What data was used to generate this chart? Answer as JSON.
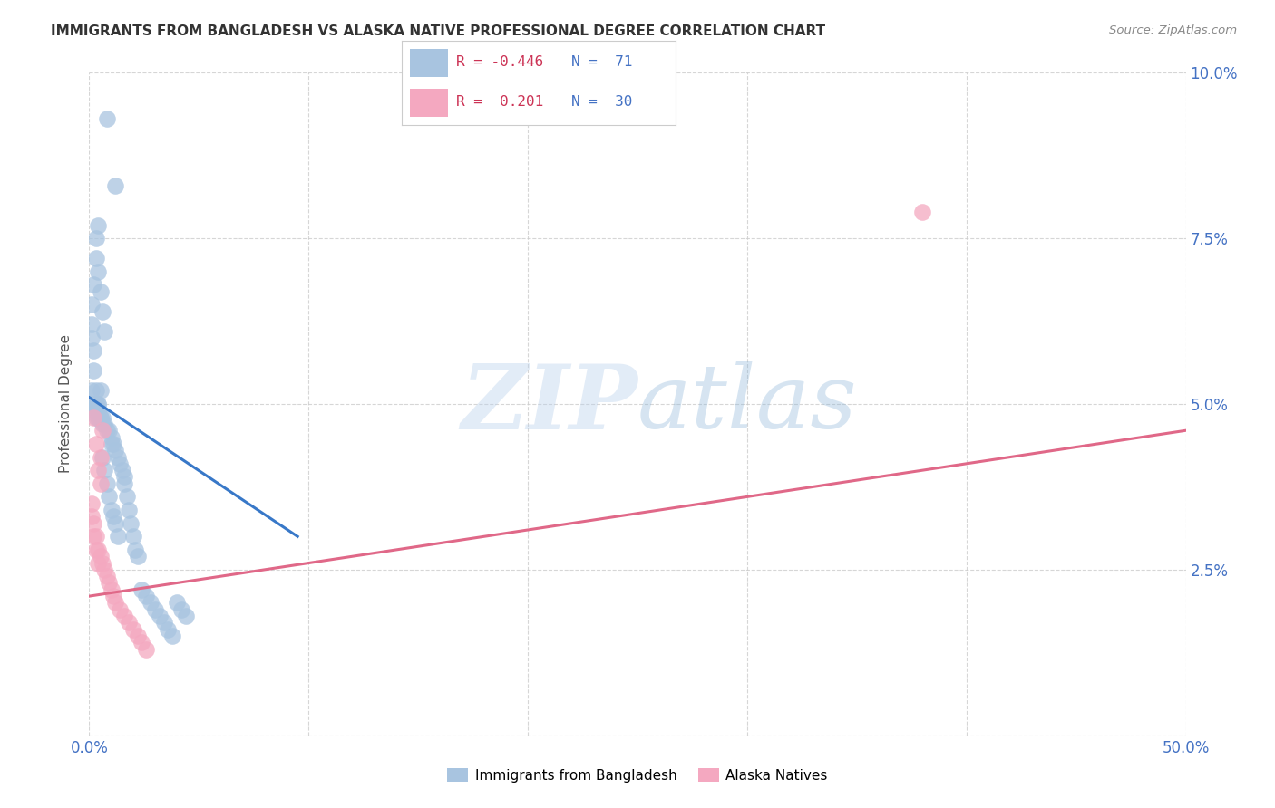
{
  "title": "IMMIGRANTS FROM BANGLADESH VS ALASKA NATIVE PROFESSIONAL DEGREE CORRELATION CHART",
  "source": "Source: ZipAtlas.com",
  "ylabel": "Professional Degree",
  "xlim": [
    0.0,
    0.5
  ],
  "ylim": [
    0.0,
    0.1
  ],
  "xticks": [
    0.0,
    0.1,
    0.2,
    0.3,
    0.4,
    0.5
  ],
  "yticks": [
    0.0,
    0.025,
    0.05,
    0.075,
    0.1
  ],
  "xticklabels": [
    "0.0%",
    "",
    "",
    "",
    "",
    "50.0%"
  ],
  "yticklabels": [
    "",
    "2.5%",
    "5.0%",
    "7.5%",
    "10.0%"
  ],
  "color_blue": "#a8c4e0",
  "color_pink": "#f4a8c0",
  "line_blue": "#3878c8",
  "line_pink": "#e06888",
  "watermark_zip": "ZIP",
  "watermark_atlas": "atlas",
  "background": "#ffffff",
  "grid_color": "#cccccc",
  "blue_scatter_x": [
    0.008,
    0.012,
    0.004,
    0.002,
    0.001,
    0.001,
    0.001,
    0.002,
    0.003,
    0.003,
    0.004,
    0.005,
    0.006,
    0.007,
    0.002,
    0.001,
    0.002,
    0.003,
    0.004,
    0.005,
    0.006,
    0.003,
    0.004,
    0.004,
    0.005,
    0.003,
    0.002,
    0.001,
    0.001,
    0.002,
    0.003,
    0.004,
    0.005,
    0.006,
    0.007,
    0.008,
    0.009,
    0.01,
    0.01,
    0.011,
    0.012,
    0.013,
    0.014,
    0.015,
    0.016,
    0.016,
    0.017,
    0.018,
    0.019,
    0.02,
    0.021,
    0.022,
    0.006,
    0.007,
    0.008,
    0.009,
    0.01,
    0.011,
    0.012,
    0.013,
    0.024,
    0.026,
    0.028,
    0.03,
    0.032,
    0.034,
    0.036,
    0.038,
    0.04,
    0.042,
    0.044
  ],
  "blue_scatter_y": [
    0.093,
    0.083,
    0.077,
    0.068,
    0.065,
    0.062,
    0.06,
    0.058,
    0.075,
    0.072,
    0.07,
    0.067,
    0.064,
    0.061,
    0.055,
    0.052,
    0.05,
    0.05,
    0.05,
    0.048,
    0.048,
    0.052,
    0.05,
    0.049,
    0.052,
    0.05,
    0.05,
    0.05,
    0.05,
    0.049,
    0.048,
    0.048,
    0.048,
    0.047,
    0.047,
    0.046,
    0.046,
    0.045,
    0.044,
    0.044,
    0.043,
    0.042,
    0.041,
    0.04,
    0.039,
    0.038,
    0.036,
    0.034,
    0.032,
    0.03,
    0.028,
    0.027,
    0.042,
    0.04,
    0.038,
    0.036,
    0.034,
    0.033,
    0.032,
    0.03,
    0.022,
    0.021,
    0.02,
    0.019,
    0.018,
    0.017,
    0.016,
    0.015,
    0.02,
    0.019,
    0.018
  ],
  "pink_scatter_x": [
    0.001,
    0.002,
    0.003,
    0.004,
    0.005,
    0.006,
    0.002,
    0.003,
    0.004,
    0.005,
    0.001,
    0.002,
    0.003,
    0.004,
    0.005,
    0.006,
    0.007,
    0.008,
    0.009,
    0.01,
    0.011,
    0.012,
    0.014,
    0.016,
    0.018,
    0.02,
    0.022,
    0.024,
    0.026,
    0.38
  ],
  "pink_scatter_y": [
    0.033,
    0.03,
    0.028,
    0.026,
    0.042,
    0.046,
    0.048,
    0.044,
    0.04,
    0.038,
    0.035,
    0.032,
    0.03,
    0.028,
    0.027,
    0.026,
    0.025,
    0.024,
    0.023,
    0.022,
    0.021,
    0.02,
    0.019,
    0.018,
    0.017,
    0.016,
    0.015,
    0.014,
    0.013,
    0.079
  ],
  "blue_line_x": [
    0.0,
    0.095
  ],
  "blue_line_y": [
    0.051,
    0.03
  ],
  "pink_line_x": [
    0.0,
    0.5
  ],
  "pink_line_y": [
    0.021,
    0.046
  ],
  "legend_r1_color": "#e05575",
  "legend_n1_color": "#4472c4",
  "legend_text1": "R = -0.446",
  "legend_n_text1": "N =  71",
  "legend_text2": "R =  0.201",
  "legend_n_text2": "N =  30"
}
